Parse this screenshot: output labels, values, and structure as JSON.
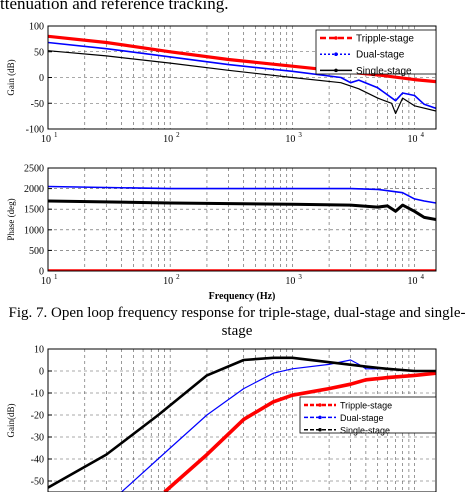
{
  "top_text": "ttenuation and reference tracking.",
  "caption": {
    "line1": "Fig. 7. Open loop frequency response for triple-stage, dual-stage and single-",
    "line2": "stage"
  },
  "colors": {
    "triple": "#ff0000",
    "dual": "#0000ff",
    "single": "#000000",
    "grid": "#555555"
  },
  "chart_data": [
    {
      "type": "line",
      "xscale": "log",
      "xlim": [
        10,
        15000
      ],
      "ylim": [
        -100,
        100
      ],
      "yticks": [
        "100",
        "50",
        "0",
        "-50",
        "-100"
      ],
      "xticks": [
        "10",
        "10",
        "10",
        "10"
      ],
      "xtick_exp": [
        "1",
        "2",
        "3",
        "4"
      ],
      "ylabel": "Gain (dB)",
      "xlabel": "",
      "legend": "top-right",
      "series": [
        {
          "name": "Tripple-stage",
          "x": [
            10,
            30,
            100,
            300,
            1000,
            3000,
            5000,
            10000,
            15000
          ],
          "y": [
            80,
            68,
            50,
            35,
            22,
            10,
            5,
            -4,
            -8
          ]
        },
        {
          "name": "Dual-stage",
          "x": [
            10,
            30,
            100,
            300,
            1000,
            2500,
            3000,
            3500,
            5000,
            7000,
            8000,
            10000,
            12000,
            15000
          ],
          "y": [
            68,
            56,
            40,
            25,
            12,
            0,
            -10,
            -5,
            -20,
            -45,
            -30,
            -35,
            -52,
            -60
          ]
        },
        {
          "name": "Single-stage",
          "x": [
            10,
            30,
            100,
            300,
            1000,
            2500,
            3500,
            5000,
            6500,
            7000,
            8000,
            10000,
            15000
          ],
          "y": [
            52,
            42,
            28,
            14,
            0,
            -10,
            -22,
            -40,
            -50,
            -70,
            -40,
            -55,
            -65
          ]
        }
      ]
    },
    {
      "type": "line",
      "xscale": "log",
      "xlim": [
        10,
        15000
      ],
      "ylim": [
        0,
        2500
      ],
      "yticks": [
        "2500",
        "2000",
        "1500",
        "1000",
        "500",
        "0"
      ],
      "xticks": [
        "10",
        "10",
        "10",
        "10"
      ],
      "xtick_exp": [
        "1",
        "2",
        "3",
        "4"
      ],
      "ylabel": "Phase (deg)",
      "xlabel": "Frequency (Hz)",
      "series": [
        {
          "name": "Tripple-stage",
          "x": [
            10,
            15000
          ],
          "y": [
            0,
            0
          ]
        },
        {
          "name": "Dual-stage",
          "x": [
            10,
            100,
            1000,
            3000,
            5000,
            8000,
            10000,
            12000,
            15000
          ],
          "y": [
            2050,
            2000,
            2000,
            2000,
            1980,
            1900,
            1750,
            1700,
            1650
          ]
        },
        {
          "name": "Single-stage",
          "x": [
            10,
            100,
            1000,
            3000,
            5000,
            6000,
            7000,
            8000,
            10000,
            12000,
            15000
          ],
          "y": [
            1700,
            1650,
            1620,
            1600,
            1550,
            1580,
            1450,
            1600,
            1450,
            1300,
            1250
          ]
        }
      ]
    },
    {
      "type": "line",
      "xscale": "log",
      "xlim": [
        10,
        15000
      ],
      "ylim": [
        -55,
        10
      ],
      "yticks": [
        "10",
        "0",
        "-10",
        "-20",
        "-30",
        "-40",
        "-50"
      ],
      "ylabel": "Gain(dB)",
      "xlabel": "",
      "legend": "right",
      "series": [
        {
          "name": "Tripple-stage",
          "x": [
            90,
            200,
            400,
            700,
            1000,
            2000,
            3000,
            4000,
            6000,
            10000,
            15000
          ],
          "y": [
            -55,
            -38,
            -22,
            -14,
            -11,
            -8,
            -6,
            -4,
            -3,
            -2,
            -1
          ]
        },
        {
          "name": "Dual-stage",
          "x": [
            40,
            100,
            200,
            400,
            700,
            1000,
            2000,
            3000,
            3500,
            4000,
            6000,
            10000,
            15000
          ],
          "y": [
            -55,
            -35,
            -20,
            -8,
            -1,
            1,
            3,
            5,
            3,
            1,
            1,
            0,
            0
          ]
        },
        {
          "name": "Single-stage",
          "x": [
            10,
            30,
            80,
            200,
            400,
            700,
            1000,
            2000,
            4000,
            6000,
            10000,
            15000
          ],
          "y": [
            -53,
            -38,
            -20,
            -2,
            5,
            6,
            6,
            4,
            2,
            1,
            0,
            0
          ]
        }
      ]
    }
  ]
}
